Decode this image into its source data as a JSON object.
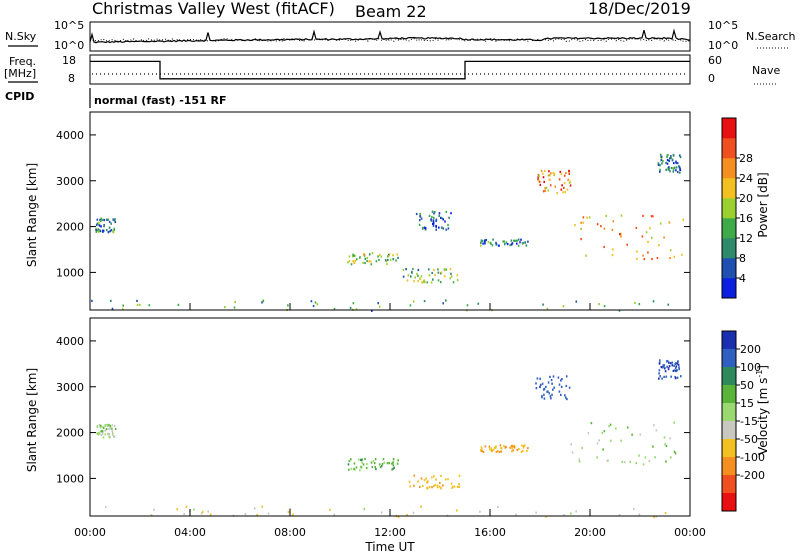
{
  "header": {
    "station": "Christmas Valley West (fitACF)",
    "beam": "Beam 22",
    "date": "18/Dec/2019"
  },
  "summary": {
    "nsky_label": "N.Sky",
    "nsky_ticks": [
      "10^5",
      "10^0"
    ],
    "nsearch_label": "N.Search",
    "freq_label": "Freq.",
    "freq_unit": "[MHz]",
    "freq_ticks": [
      "18",
      "8"
    ],
    "nave_label": "Nave",
    "nave_ticks": [
      "60",
      "0"
    ],
    "cpid_label": "CPID",
    "cpid_text": "normal (fast) -151 RF"
  },
  "axes": {
    "xlabel": "Time UT",
    "ylabel": "Slant Range [km]",
    "xticks": [
      "00:00",
      "04:00",
      "08:00",
      "12:00",
      "16:00",
      "20:00",
      "00:00"
    ],
    "yticks": [
      "1000",
      "2000",
      "3000",
      "4000"
    ]
  },
  "colorbars": {
    "power": {
      "label": "Power [dB]",
      "ticks": [
        "4",
        "8",
        "12",
        "16",
        "20",
        "24",
        "28"
      ],
      "colors": [
        "#0a1fe0",
        "#1f4fb0",
        "#2e8a6a",
        "#3faa4a",
        "#9ad030",
        "#f2c020",
        "#f59020",
        "#f05020",
        "#e81010"
      ]
    },
    "velocity": {
      "label": "Velocity [m s^-1]",
      "ticks": [
        "200",
        "100",
        "50",
        "15",
        "-15",
        "-50",
        "-100",
        "-200"
      ],
      "colors": [
        "#1a2fb0",
        "#2f5fc0",
        "#2e8a5a",
        "#5ab43a",
        "#9ad870",
        "#c8c8c0",
        "#f2c020",
        "#f59020",
        "#f05020",
        "#e81010"
      ]
    }
  },
  "chart_data": [
    {
      "type": "line",
      "title": "N.Sky / N.Search",
      "x": [
        0,
        3,
        6,
        9,
        12,
        13,
        15,
        18,
        21,
        24
      ],
      "series": [
        {
          "name": "N.Sky",
          "values": [
            1.5,
            1.7,
            1.9,
            2.0,
            2.1,
            3.6,
            2.0,
            1.9,
            3.8,
            1.8
          ]
        }
      ],
      "ylim": [
        0,
        5
      ]
    },
    {
      "type": "line",
      "title": "Freq. / Nave",
      "x": [
        0,
        2.8,
        2.8,
        15,
        15,
        24
      ],
      "series": [
        {
          "name": "Freq.",
          "values": [
            16.5,
            16.5,
            10.5,
            10.5,
            16.5,
            16.5
          ]
        }
      ],
      "ylim": [
        8,
        18
      ]
    },
    {
      "type": "heatmap",
      "xlabel": "Time UT",
      "ylabel": "Slant Range [km]",
      "xlim": [
        0,
        24
      ],
      "ylim": [
        180,
        4500
      ],
      "colorbar": "Power [dB]",
      "clim": [
        0,
        30
      ],
      "regions": [
        {
          "t0": 0.0,
          "t1": 24.0,
          "r0": 180,
          "r1": 420,
          "v": 10
        },
        {
          "t0": 0.2,
          "t1": 1.0,
          "r0": 1900,
          "r1": 2200,
          "v": 8
        },
        {
          "t0": 10.2,
          "t1": 12.3,
          "r0": 1200,
          "r1": 1450,
          "v": 14
        },
        {
          "t0": 12.5,
          "t1": 14.8,
          "r0": 800,
          "r1": 1100,
          "v": 13
        },
        {
          "t0": 13.0,
          "t1": 14.5,
          "r0": 1950,
          "r1": 2350,
          "v": 6
        },
        {
          "t0": 15.6,
          "t1": 17.5,
          "r0": 1600,
          "r1": 1750,
          "v": 7
        },
        {
          "t0": 17.8,
          "t1": 19.2,
          "r0": 2750,
          "r1": 3250,
          "v": 22
        },
        {
          "t0": 19.2,
          "t1": 23.8,
          "r0": 1300,
          "r1": 2300,
          "v": 20
        },
        {
          "t0": 22.7,
          "t1": 23.6,
          "r0": 3200,
          "r1": 3600,
          "v": 8
        }
      ]
    },
    {
      "type": "heatmap",
      "xlabel": "Time UT",
      "ylabel": "Slant Range [km]",
      "xlim": [
        0,
        24
      ],
      "ylim": [
        180,
        4500
      ],
      "colorbar": "Velocity [m s^-1]",
      "clim": [
        -200,
        200
      ],
      "regions": [
        {
          "t0": 0.0,
          "t1": 24.0,
          "r0": 180,
          "r1": 420,
          "v": -40
        },
        {
          "t0": 0.2,
          "t1": 1.0,
          "r0": 1900,
          "r1": 2200,
          "v": 0
        },
        {
          "t0": 10.2,
          "t1": 12.3,
          "r0": 1200,
          "r1": 1450,
          "v": 30
        },
        {
          "t0": 12.5,
          "t1": 14.8,
          "r0": 800,
          "r1": 1100,
          "v": -80
        },
        {
          "t0": 15.6,
          "t1": 17.5,
          "r0": 1600,
          "r1": 1750,
          "v": -90
        },
        {
          "t0": 17.8,
          "t1": 19.2,
          "r0": 2750,
          "r1": 3250,
          "v": 150
        },
        {
          "t0": 19.2,
          "t1": 23.8,
          "r0": 1300,
          "r1": 2300,
          "v": 0
        },
        {
          "t0": 22.7,
          "t1": 23.6,
          "r0": 3200,
          "r1": 3600,
          "v": 200
        }
      ]
    }
  ]
}
